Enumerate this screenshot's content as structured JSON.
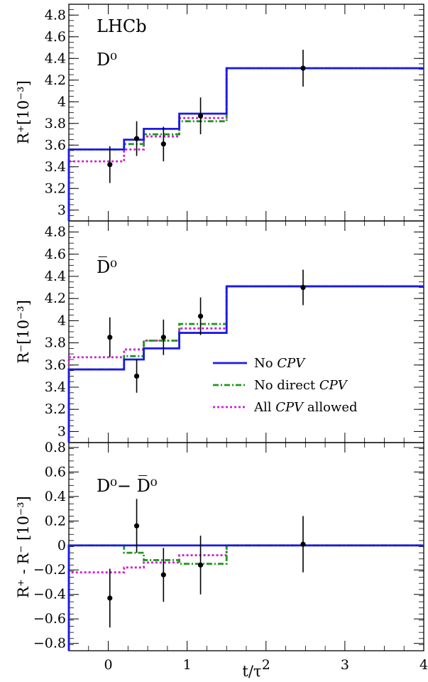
{
  "chart_data": [
    {
      "type": "line",
      "experiment_label": "LHCb",
      "panel_label": "D⁰",
      "ylabel": "R⁺[10⁻³]",
      "ylim": [
        2.9,
        4.9
      ],
      "yticks": [
        3,
        3.2,
        3.4,
        3.6,
        3.8,
        4,
        4.2,
        4.4,
        4.6,
        4.8
      ],
      "bin_edges": [
        -0.5,
        0.2,
        0.45,
        0.9,
        1.5,
        4.0
      ],
      "series": [
        {
          "key": "no_cpv",
          "color": "#1a1ae6",
          "dash": "",
          "values": [
            3.56,
            3.65,
            3.75,
            3.89,
            4.31
          ]
        },
        {
          "key": "no_direct",
          "color": "#1a9a1a",
          "dash": "8 3 2 3",
          "values": [
            3.56,
            3.61,
            3.7,
            3.82,
            4.31
          ]
        },
        {
          "key": "all_cpv",
          "color": "#cc22cc",
          "dash": "3 3",
          "values": [
            3.45,
            3.56,
            3.68,
            3.85,
            4.31
          ]
        }
      ],
      "points": [
        {
          "x": 0.02,
          "y": 3.42,
          "err": 0.17
        },
        {
          "x": 0.36,
          "y": 3.66,
          "err": 0.16
        },
        {
          "x": 0.7,
          "y": 3.61,
          "err": 0.16
        },
        {
          "x": 1.17,
          "y": 3.87,
          "err": 0.17
        },
        {
          "x": 2.47,
          "y": 4.31,
          "err": 0.17
        }
      ]
    },
    {
      "type": "line",
      "panel_label": "D̅⁰",
      "ylabel": "R⁻[10⁻³]",
      "ylim": [
        2.9,
        4.9
      ],
      "yticks": [
        3,
        3.2,
        3.4,
        3.6,
        3.8,
        4,
        4.2,
        4.4,
        4.6,
        4.8
      ],
      "bin_edges": [
        -0.5,
        0.2,
        0.45,
        0.9,
        1.5,
        4.0
      ],
      "series": [
        {
          "key": "no_cpv",
          "color": "#1a1ae6",
          "dash": "",
          "values": [
            3.56,
            3.65,
            3.75,
            3.89,
            4.31
          ]
        },
        {
          "key": "no_direct",
          "color": "#1a9a1a",
          "dash": "8 3 2 3",
          "values": [
            3.56,
            3.68,
            3.82,
            3.97,
            4.31
          ]
        },
        {
          "key": "all_cpv",
          "color": "#cc22cc",
          "dash": "3 3",
          "values": [
            3.67,
            3.74,
            3.82,
            3.93,
            4.31
          ]
        }
      ],
      "points": [
        {
          "x": 0.02,
          "y": 3.85,
          "err": 0.18
        },
        {
          "x": 0.36,
          "y": 3.5,
          "err": 0.15
        },
        {
          "x": 0.7,
          "y": 3.85,
          "err": 0.16
        },
        {
          "x": 1.17,
          "y": 4.04,
          "err": 0.17
        },
        {
          "x": 2.47,
          "y": 4.3,
          "err": 0.16
        }
      ],
      "legend": {
        "placement": "center-right",
        "entries": [
          {
            "key": "no_cpv",
            "prefix": "No ",
            "italic": "CPV",
            "suffix": ""
          },
          {
            "key": "no_direct",
            "prefix": "No direct ",
            "italic": "CPV",
            "suffix": ""
          },
          {
            "key": "all_cpv",
            "prefix": "All ",
            "italic": "CPV",
            "suffix": " allowed"
          }
        ]
      }
    },
    {
      "type": "line",
      "panel_label": "D⁰− D̅⁰",
      "ylabel": "R⁺ - R⁻ [10⁻³]",
      "xlabel": "t/τ",
      "ylim": [
        -0.86,
        0.84
      ],
      "yticks": [
        -0.8,
        -0.6,
        -0.4,
        -0.2,
        0,
        0.2,
        0.4,
        0.6,
        0.8
      ],
      "ytick_labels": [
        "−0.8",
        "−0.6",
        "−0.4",
        "−0.2",
        "0",
        "0.2",
        "0.4",
        "0.6",
        "0.8"
      ],
      "xlim": [
        -0.5,
        4.0
      ],
      "xticks": [
        0,
        1,
        2,
        3,
        4
      ],
      "bin_edges": [
        -0.5,
        0.2,
        0.45,
        0.9,
        1.5,
        4.0
      ],
      "series": [
        {
          "key": "no_cpv",
          "color": "#1a1ae6",
          "dash": "",
          "values": [
            0.0,
            0.0,
            0.0,
            0.0,
            0.0
          ]
        },
        {
          "key": "no_direct",
          "color": "#1a9a1a",
          "dash": "8 3 2 3",
          "values": [
            0.0,
            -0.06,
            -0.12,
            -0.15,
            0.0
          ]
        },
        {
          "key": "all_cpv",
          "color": "#cc22cc",
          "dash": "3 3",
          "values": [
            -0.22,
            -0.18,
            -0.14,
            -0.08,
            0.0
          ]
        }
      ],
      "points": [
        {
          "x": 0.02,
          "y": -0.43,
          "err": 0.24
        },
        {
          "x": 0.36,
          "y": 0.16,
          "err": 0.22
        },
        {
          "x": 0.7,
          "y": -0.24,
          "err": 0.22
        },
        {
          "x": 1.17,
          "y": -0.16,
          "err": 0.24
        },
        {
          "x": 2.47,
          "y": 0.01,
          "err": 0.23
        }
      ]
    }
  ]
}
